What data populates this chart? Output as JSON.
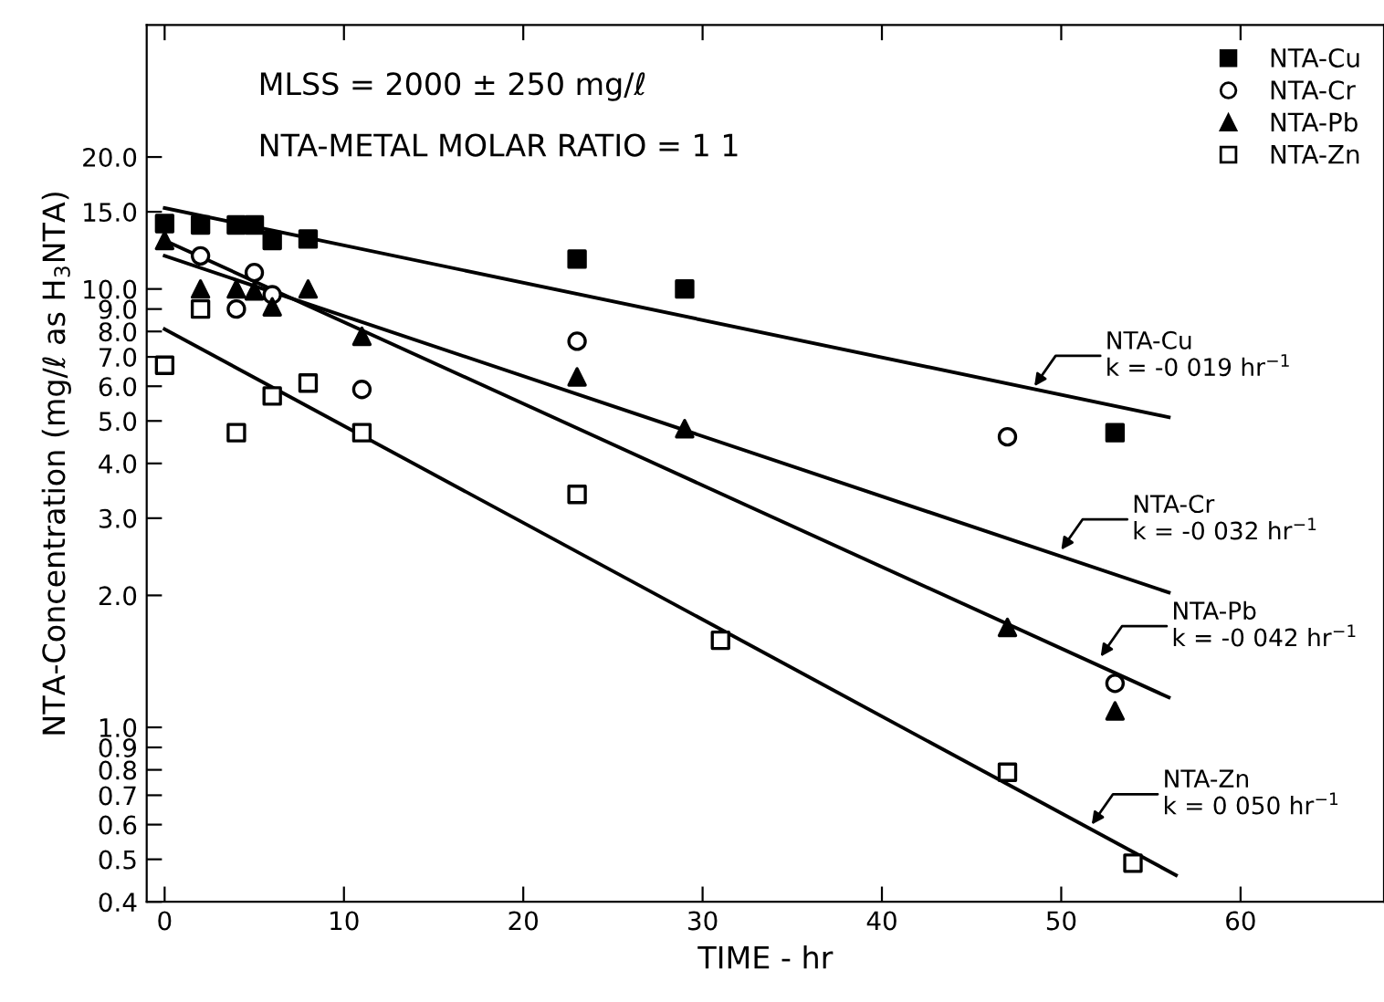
{
  "chart_data": {
    "type": "scatter",
    "xlabel": "TIME - hr",
    "ylabel": "NTA-Concentration (mg/ℓ as H$_{3}$NTA)",
    "xlim": [
      -1,
      68
    ],
    "xticks": [
      0,
      10,
      20,
      30,
      40,
      50,
      60
    ],
    "ylim": [
      0.4,
      40
    ],
    "log": true,
    "yticks": [
      {
        "value": 0.4,
        "label": "0.4"
      },
      {
        "value": 0.5,
        "label": "0.5"
      },
      {
        "value": 0.6,
        "label": "0.6"
      },
      {
        "value": 0.7,
        "label": "0.7"
      },
      {
        "value": 0.8,
        "label": "0.8"
      },
      {
        "value": 0.9,
        "label": "0.9"
      },
      {
        "value": 1,
        "label": "1.0"
      },
      {
        "value": 2,
        "label": "2.0"
      },
      {
        "value": 3,
        "label": "3.0"
      },
      {
        "value": 4,
        "label": "4.0"
      },
      {
        "value": 5,
        "label": "5.0"
      },
      {
        "value": 6,
        "label": "6.0"
      },
      {
        "value": 7,
        "label": "7.0"
      },
      {
        "value": 8,
        "label": "8.0"
      },
      {
        "value": 9,
        "label": "9.0"
      },
      {
        "value": 10,
        "label": "10.0"
      },
      {
        "value": 15,
        "label": "15.0"
      },
      {
        "value": 20,
        "label": "20.0"
      }
    ],
    "grid": false,
    "legend": "top right",
    "series": [
      {
        "name": "NTA-Cu",
        "color": "#000000",
        "marker": "square",
        "x": [
          0,
          2,
          4,
          5,
          6,
          8,
          23,
          29,
          53
        ],
        "values": [
          14.1,
          14.0,
          14.0,
          14.0,
          12.9,
          13.0,
          11.7,
          10.0,
          4.7
        ]
      },
      {
        "name": "NTA-Cr",
        "color": "#ffffff",
        "marker": "circle",
        "x": [
          2,
          4,
          5,
          6,
          11,
          23,
          47,
          53
        ],
        "values": [
          11.9,
          9.0,
          10.9,
          9.7,
          5.9,
          7.6,
          4.6,
          1.26
        ]
      },
      {
        "name": "NTA-Pb",
        "color": "#000000",
        "marker": "triangle",
        "x": [
          0,
          2,
          4,
          5,
          6,
          8,
          11,
          23,
          29,
          47,
          53
        ],
        "values": [
          12.9,
          10.0,
          10.0,
          9.9,
          9.1,
          10.0,
          7.8,
          6.3,
          4.8,
          1.69,
          1.09
        ]
      },
      {
        "name": "NTA-Zn",
        "color": "#ffffff",
        "marker": "square",
        "x": [
          0,
          2,
          4,
          6,
          8,
          11,
          23,
          31,
          47,
          54
        ],
        "values": [
          6.7,
          9.0,
          4.7,
          5.7,
          6.1,
          4.7,
          3.4,
          1.58,
          0.79,
          0.49
        ]
      },
      {
        "type": "line",
        "color": "#000000",
        "x": [
          0,
          56
        ],
        "values": [
          15.3,
          5.1
        ]
      },
      {
        "type": "line",
        "color": "#000000",
        "x": [
          0,
          56
        ],
        "values": [
          11.9,
          2.03
        ]
      },
      {
        "type": "line",
        "color": "#000000",
        "x": [
          0,
          56
        ],
        "values": [
          12.9,
          1.17
        ]
      },
      {
        "type": "line",
        "color": "#000000",
        "x": [
          0,
          56.4
        ],
        "values": [
          8.1,
          0.46
        ]
      }
    ],
    "annotations": [
      "MLSS = 2000 ± 250 mg/ℓ",
      "NTA-METAL MOLAR RATIO = 1 1",
      {
        "text": "NTA-Cu\nk = -0 019 hr$^{−1}$",
        "x": 48.5,
        "y": 6.0
      },
      {
        "text": "NTA-Cr\nk = -0 032 hr$^{−1}$",
        "x": 50,
        "y": 2.54
      },
      {
        "text": "NTA-Pb\nk = -0 042 hr$^{−1}$",
        "x": 52.2,
        "y": 1.45
      },
      {
        "text": "NTA-Zn\nk = 0 050 hr$^{−1}$",
        "x": 51.7,
        "y": 0.6
      }
    ]
  }
}
